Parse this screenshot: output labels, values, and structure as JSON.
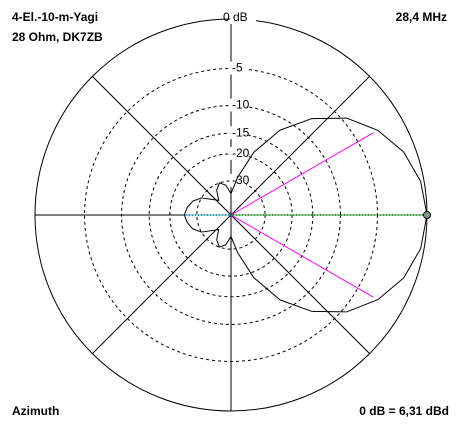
{
  "chart_data": {
    "type": "polar",
    "title": "4-El.-10-m-Yagi",
    "subtitle": "28 Ohm, DK7ZB",
    "frequency": "28,4 MHz",
    "axis_label": "Azimuth",
    "reference": "0 dB = 6,31 dBd",
    "angles": [
      0,
      10,
      20,
      30,
      40,
      50,
      60,
      70,
      80,
      90,
      100,
      110,
      120,
      130,
      140,
      150,
      160,
      170,
      180,
      190,
      200,
      210,
      220,
      230,
      240,
      250,
      260,
      270,
      280,
      290,
      300,
      310,
      320,
      330,
      340,
      350
    ],
    "values": [
      0,
      -0.3,
      -1.1,
      -2.5,
      -4.5,
      -7.6,
      -11.9,
      -18.5,
      -28,
      -38,
      -32,
      -30,
      -33,
      -40,
      -36,
      -30,
      -27,
      -25.5,
      -24.6,
      -25.5,
      -27,
      -30,
      -36,
      -40,
      -33,
      -30,
      -32,
      -38,
      -28,
      -18.5,
      -11.9,
      -7.6,
      -4.5,
      -2.5,
      -1.1,
      -0.3
    ],
    "color": "#000000",
    "rticks": [
      {
        "value": 0,
        "label": "0 dB"
      },
      -5,
      -10,
      -15,
      -20,
      -30
    ],
    "spokes": [
      0,
      45,
      90,
      135
    ],
    "half_power": {
      "angles": [
        30,
        -30
      ],
      "db": -3,
      "color": "#ff00ff"
    },
    "forward_color": "#00b000",
    "back_color": "#00c0e0"
  }
}
